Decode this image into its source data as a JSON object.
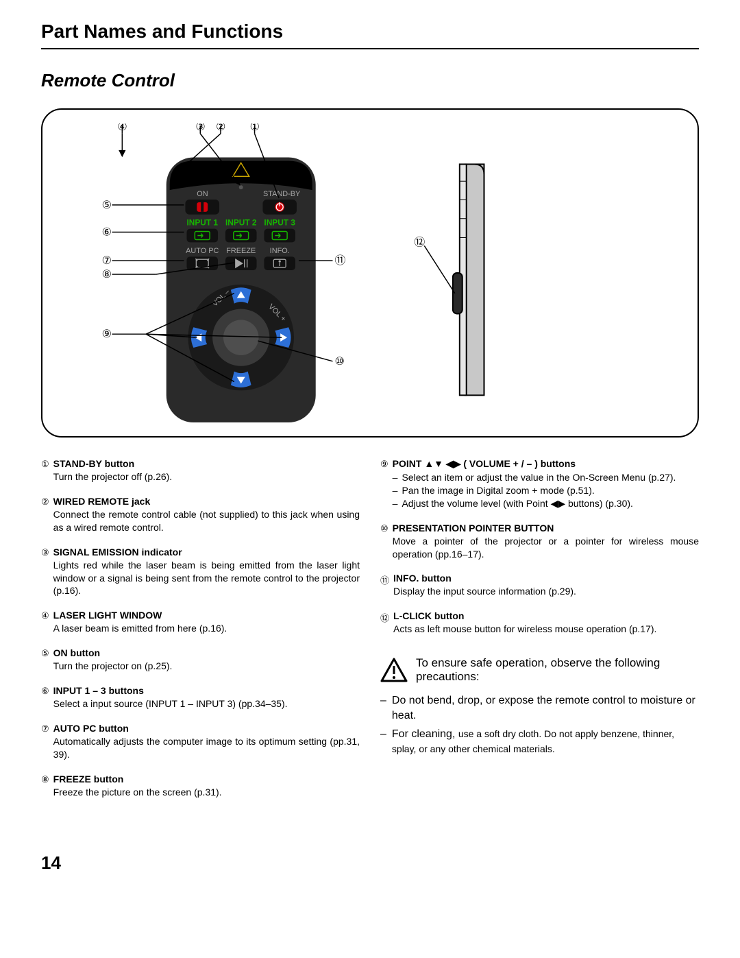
{
  "section_title": "Part Names and Functions",
  "subsection_title": "Remote Control",
  "page_number": "14",
  "remote": {
    "on_label": "ON",
    "standby_label": "STAND-BY",
    "input1": "INPUT 1",
    "input2": "INPUT 2",
    "input3": "INPUT 3",
    "autopc": "AUTO PC",
    "freeze": "FREEZE",
    "info": "INFO.",
    "vol_minus": "VOL –",
    "vol_plus": "VOL +",
    "callouts": {
      "1": "①",
      "2": "②",
      "3": "③",
      "4": "④",
      "5": "⑤",
      "6": "⑥",
      "7": "⑦",
      "8": "⑧",
      "9": "⑨",
      "10": "⑩",
      "11": "⑪",
      "12": "⑫"
    },
    "colors": {
      "body": "#2a2a2a",
      "top": "#000000",
      "green": "#16b400",
      "red": "#d4000a",
      "white": "#ffffff",
      "gray_label": "#a8a8a8",
      "blue": "#2d6fd6",
      "darkgray_btn": "#4a4a4a",
      "side_view": "#c8c8c8"
    }
  },
  "left_items": [
    {
      "num": "①",
      "title": "STAND-BY button",
      "desc": "Turn the projector off (p.26)."
    },
    {
      "num": "②",
      "title": "WIRED REMOTE jack",
      "desc": "Connect the remote control cable (not supplied) to this jack when using as a wired remote control."
    },
    {
      "num": "③",
      "title": "SIGNAL EMISSION indicator",
      "desc": "Lights red while the laser beam is being emitted from the laser light window or a signal is being sent from the remote control to the projector (p.16)."
    },
    {
      "num": "④",
      "title": "LASER LIGHT WINDOW",
      "desc": "A laser beam is emitted from here (p.16)."
    },
    {
      "num": "⑤",
      "title": "ON button",
      "desc": "Turn the projector on (p.25)."
    },
    {
      "num": "⑥",
      "title": "INPUT 1 – 3 buttons",
      "desc": "Select a input source (INPUT 1 – INPUT 3) (pp.34–35)."
    },
    {
      "num": "⑦",
      "title": "AUTO PC button",
      "desc": "Automatically adjusts the computer image to its optimum setting (pp.31, 39)."
    },
    {
      "num": "⑧",
      "title": "FREEZE button",
      "desc": "Freeze the picture on the screen (p.31)."
    }
  ],
  "right_items": [
    {
      "num": "⑨",
      "title": "POINT ▲▼ ◀▶ ( VOLUME + / – ) buttons",
      "bullets": [
        "Select an item or adjust the value in the On-Screen Menu (p.27).",
        "Pan the image in Digital zoom + mode (p.51).",
        "Adjust the volume level (with Point ◀▶ buttons) (p.30)."
      ]
    },
    {
      "num": "⑩",
      "title": "PRESENTATION POINTER BUTTON",
      "desc": "Move a pointer of the projector or a pointer for wireless mouse operation (pp.16–17)."
    },
    {
      "num": "⑪",
      "title": "INFO. button",
      "desc": "Display the input source information (p.29)."
    },
    {
      "num": "⑫",
      "title": "L-CLICK button",
      "desc": "Acts as left mouse button for wireless mouse operation (p.17)."
    }
  ],
  "caution": {
    "lead": "To ensure safe operation, observe the following precautions:",
    "items": [
      {
        "pre": "Do not bend, drop, or expose the remote control to moisture or heat."
      },
      {
        "pre": "For cleaning, ",
        "small": "use a soft dry cloth. Do not apply benzene, thinner, splay, or any other chemical materials."
      }
    ]
  }
}
